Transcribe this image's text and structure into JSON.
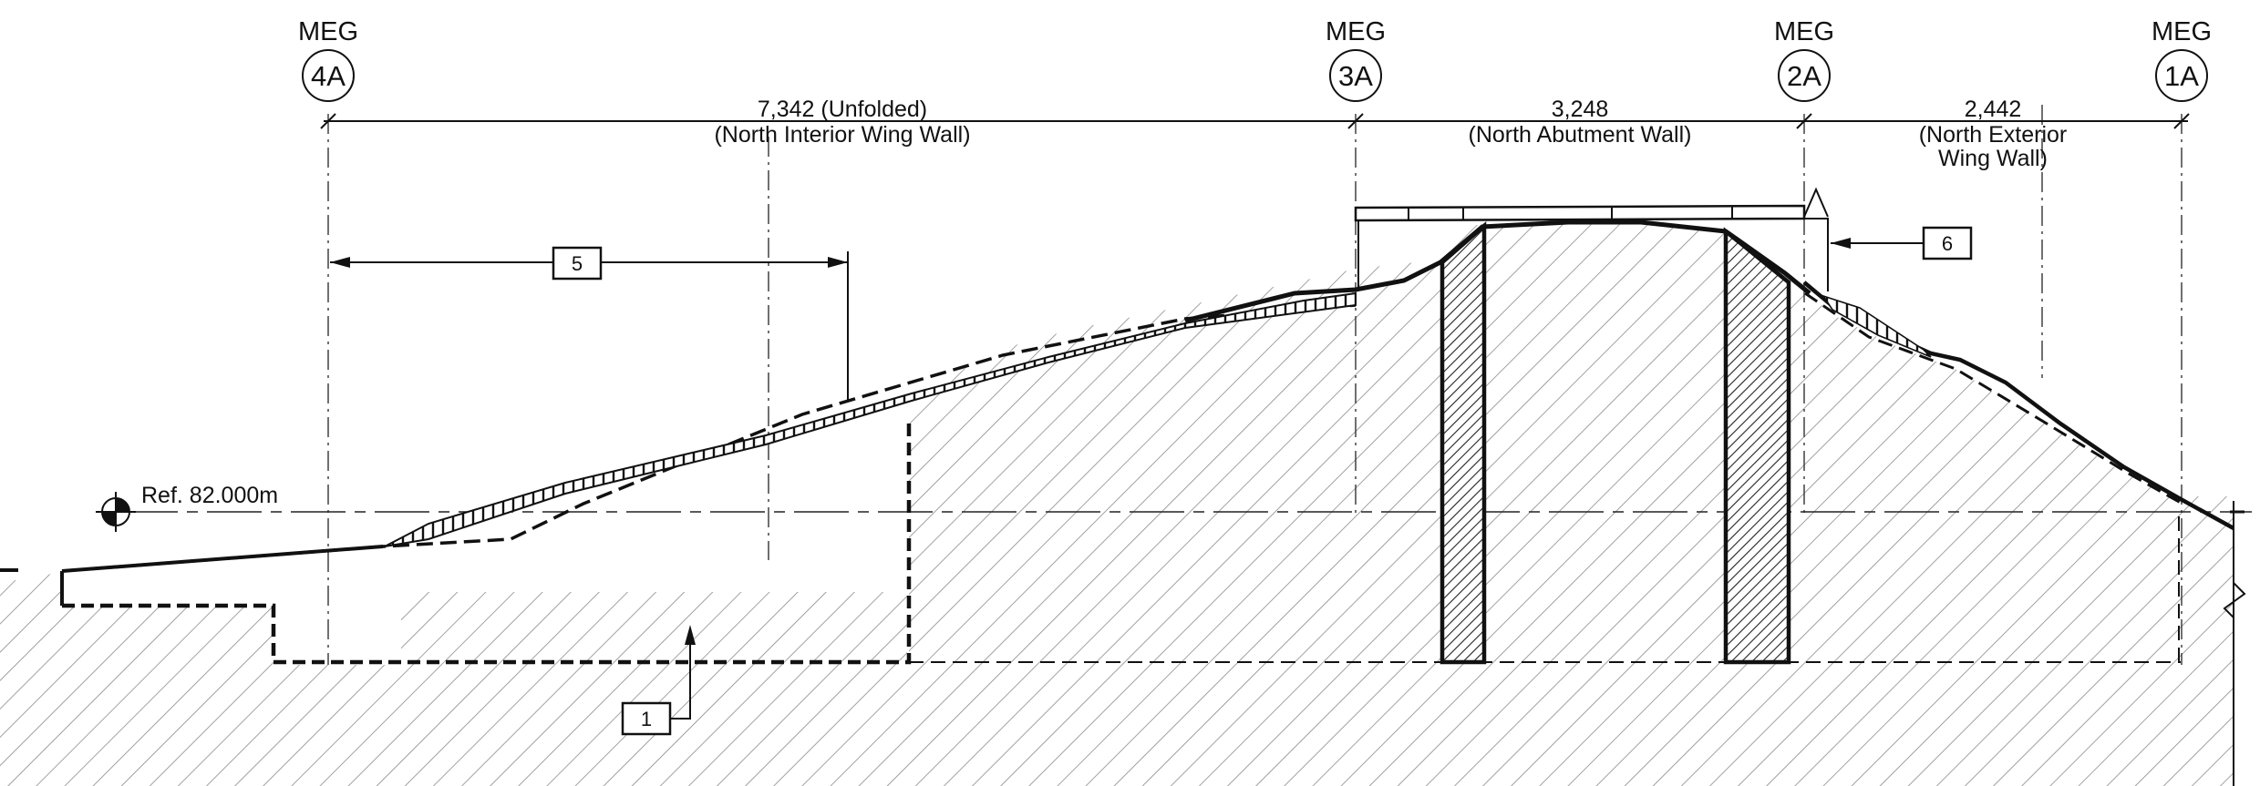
{
  "grid": [
    {
      "label": "MEG",
      "id": "4A"
    },
    {
      "label": "MEG",
      "id": "3A"
    },
    {
      "label": "MEG",
      "id": "2A"
    },
    {
      "label": "MEG",
      "id": "1A"
    }
  ],
  "dimensions": [
    {
      "value": "7,342 (Unfolded)",
      "desc": "(North Interior Wing Wall)"
    },
    {
      "value": "3,248",
      "desc": "(North Abutment Wall)"
    },
    {
      "value": "2,442",
      "desc_line1": "(North Exterior",
      "desc_line2": "Wing Wall)"
    }
  ],
  "reference": {
    "text": "Ref. 82.000m"
  },
  "keys": [
    {
      "text": "5"
    },
    {
      "text": "6"
    },
    {
      "text": "1"
    }
  ]
}
